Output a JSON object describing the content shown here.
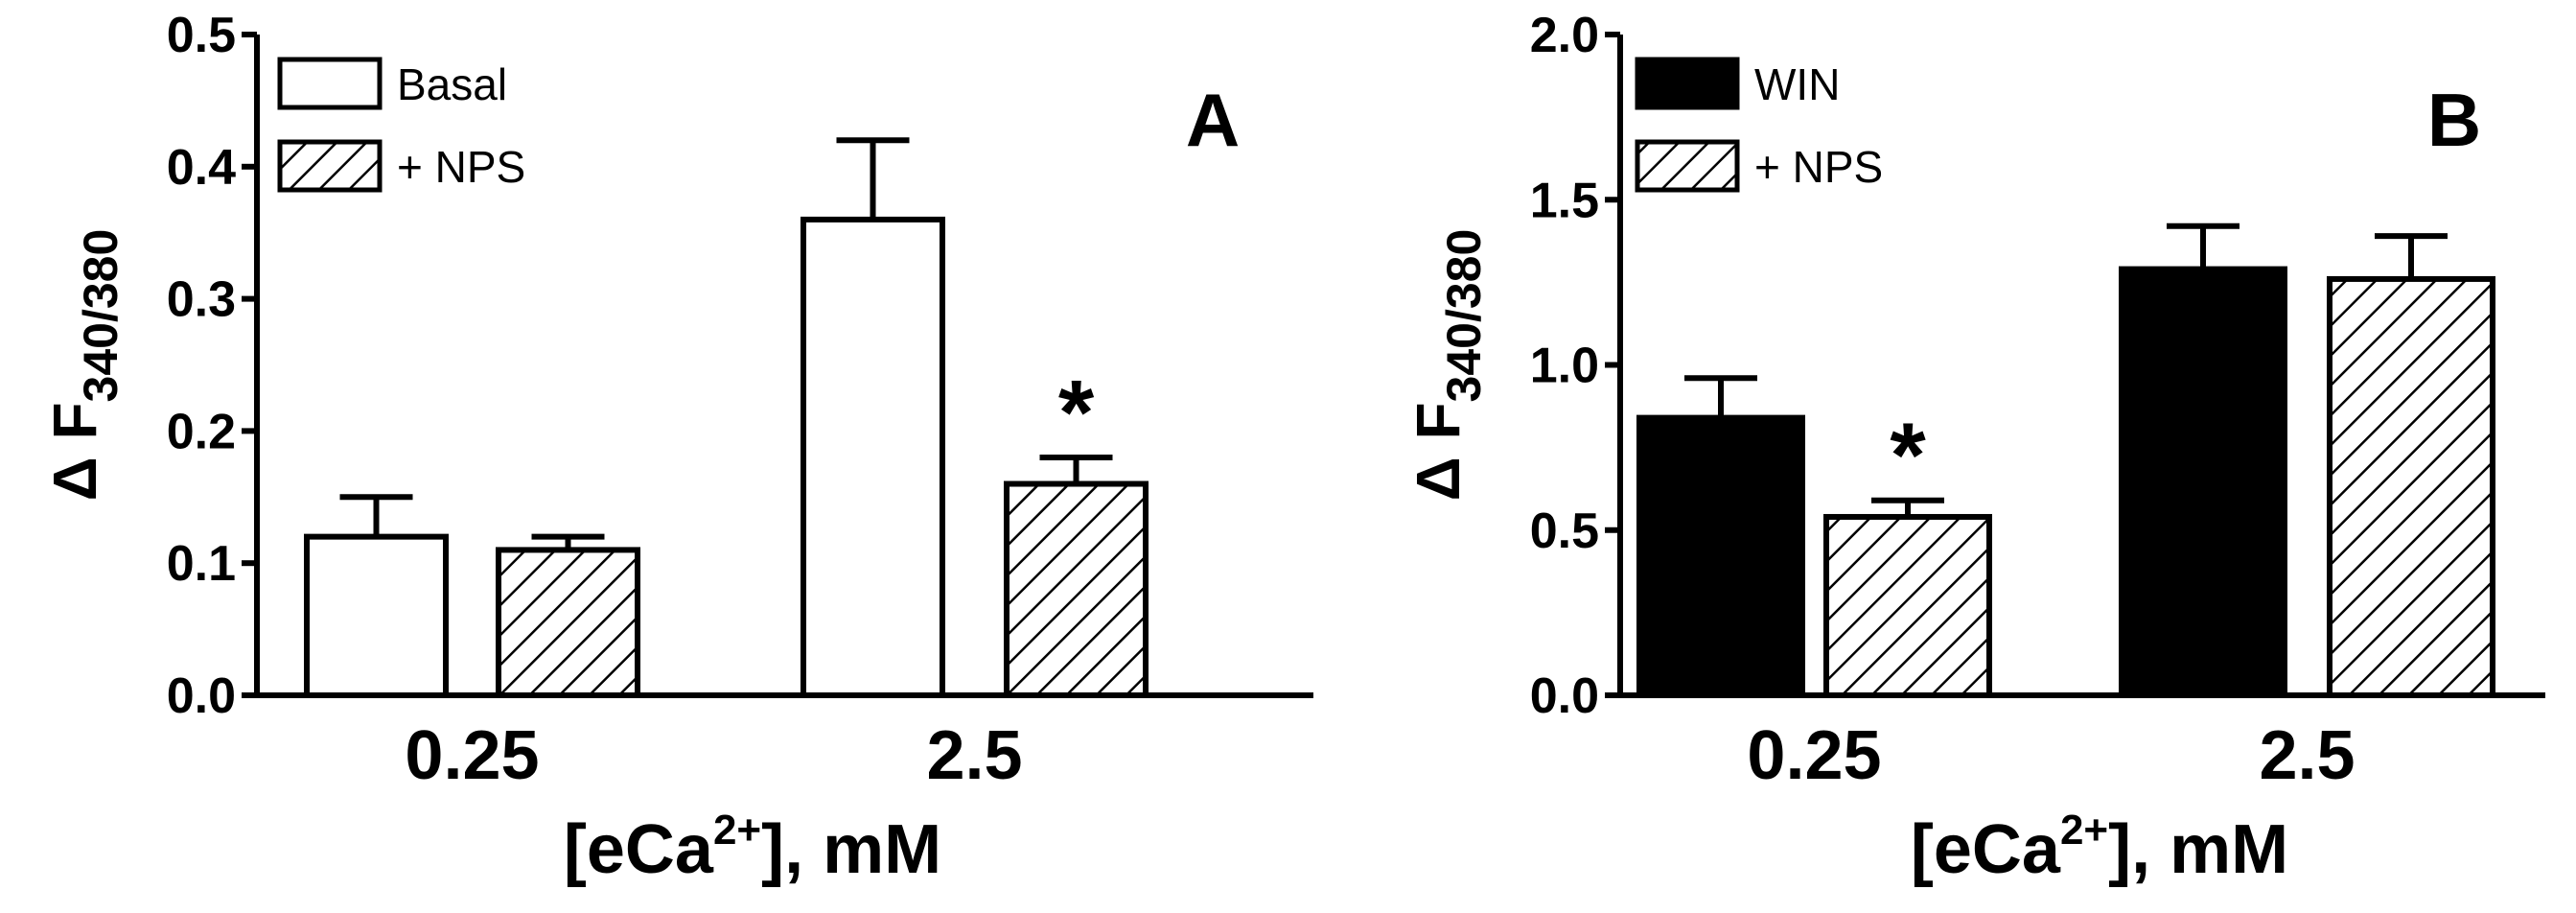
{
  "chart_data": [
    {
      "type": "bar",
      "panel_label": "A",
      "categories": [
        "0.25",
        "2.5"
      ],
      "series": [
        {
          "name": "Basal",
          "fill": "open",
          "values": [
            0.12,
            0.36
          ],
          "errors": [
            0.03,
            0.06
          ]
        },
        {
          "name": "+ NPS",
          "fill": "hatched",
          "values": [
            0.11,
            0.16
          ],
          "errors": [
            0.01,
            0.02
          ]
        }
      ],
      "significance": [
        {
          "category": "2.5",
          "series": "+ NPS",
          "mark": "*"
        }
      ],
      "xlabel": {
        "main": "[eCa",
        "sup": "2+",
        "tail": "], mM"
      },
      "ylabel": {
        "main": "Δ F",
        "sub": "340/380"
      },
      "ylim": [
        0,
        0.5
      ],
      "yticks": [
        0.0,
        0.1,
        0.2,
        0.3,
        0.4,
        0.5
      ],
      "ytick_labels": [
        "0.0",
        "0.1",
        "0.2",
        "0.3",
        "0.4",
        "0.5"
      ],
      "legend_position": "top-left",
      "grid": false
    },
    {
      "type": "bar",
      "panel_label": "B",
      "categories": [
        "0.25",
        "2.5"
      ],
      "series": [
        {
          "name": "WIN",
          "fill": "solid",
          "values": [
            0.84,
            1.29
          ],
          "errors": [
            0.12,
            0.13
          ]
        },
        {
          "name": "+ NPS",
          "fill": "hatched",
          "values": [
            0.54,
            1.26
          ],
          "errors": [
            0.05,
            0.13
          ]
        }
      ],
      "significance": [
        {
          "category": "0.25",
          "series": "+ NPS",
          "mark": "*"
        }
      ],
      "xlabel": {
        "main": "[eCa",
        "sup": "2+",
        "tail": "], mM"
      },
      "ylabel": {
        "main": "Δ F",
        "sub": "340/380"
      },
      "ylim": [
        0,
        2.0
      ],
      "yticks": [
        0.0,
        0.5,
        1.0,
        1.5,
        2.0
      ],
      "ytick_labels": [
        "0.0",
        "0.5",
        "1.0",
        "1.5",
        "2.0"
      ],
      "legend_position": "top-left",
      "grid": false
    }
  ],
  "colors": {
    "ink": "#000000",
    "background": "#ffffff"
  }
}
